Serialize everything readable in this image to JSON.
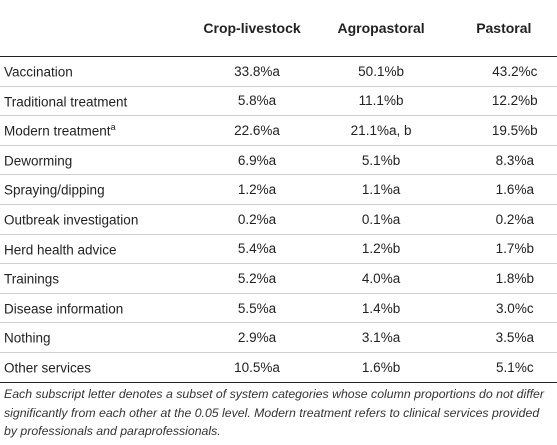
{
  "header": {
    "col1": "",
    "col2": "Crop-livestock",
    "col3": "Agropastoral",
    "col4": "Pastoral"
  },
  "rows": [
    {
      "label": "Vaccination",
      "sup": "",
      "c1": "33.8%a",
      "c2": "50.1%b",
      "c3": "43.2%c"
    },
    {
      "label": "Traditional treatment",
      "sup": "",
      "c1": "5.8%a",
      "c2": "11.1%b",
      "c3": "12.2%b"
    },
    {
      "label": "Modern treatment",
      "sup": "a",
      "c1": "22.6%a",
      "c2": "21.1%a, b",
      "c3": "19.5%b"
    },
    {
      "label": "Deworming",
      "sup": "",
      "c1": "6.9%a",
      "c2": "5.1%b",
      "c3": "8.3%a"
    },
    {
      "label": "Spraying/dipping",
      "sup": "",
      "c1": "1.2%a",
      "c2": "1.1%a",
      "c3": "1.6%a"
    },
    {
      "label": "Outbreak investigation",
      "sup": "",
      "c1": "0.2%a",
      "c2": "0.1%a",
      "c3": "0.2%a"
    },
    {
      "label": "Herd health advice",
      "sup": "",
      "c1": "5.4%a",
      "c2": "1.2%b",
      "c3": "1.7%b"
    },
    {
      "label": "Trainings",
      "sup": "",
      "c1": "5.2%a",
      "c2": "4.0%a",
      "c3": "1.8%b"
    },
    {
      "label": "Disease information",
      "sup": "",
      "c1": "5.5%a",
      "c2": "1.4%b",
      "c3": "3.0%c"
    },
    {
      "label": "Nothing",
      "sup": "",
      "c1": "2.9%a",
      "c2": "3.1%a",
      "c3": "3.5%a"
    },
    {
      "label": "Other services",
      "sup": "",
      "c1": "10.5%a",
      "c2": "1.6%b",
      "c3": "5.1%c"
    }
  ],
  "footnote": "Each subscript letter denotes a subset of system categories whose column proportions do not differ significantly from each other at the 0.05 level. Modern treatment refers to clinical services provided by professionals and paraprofessionals."
}
